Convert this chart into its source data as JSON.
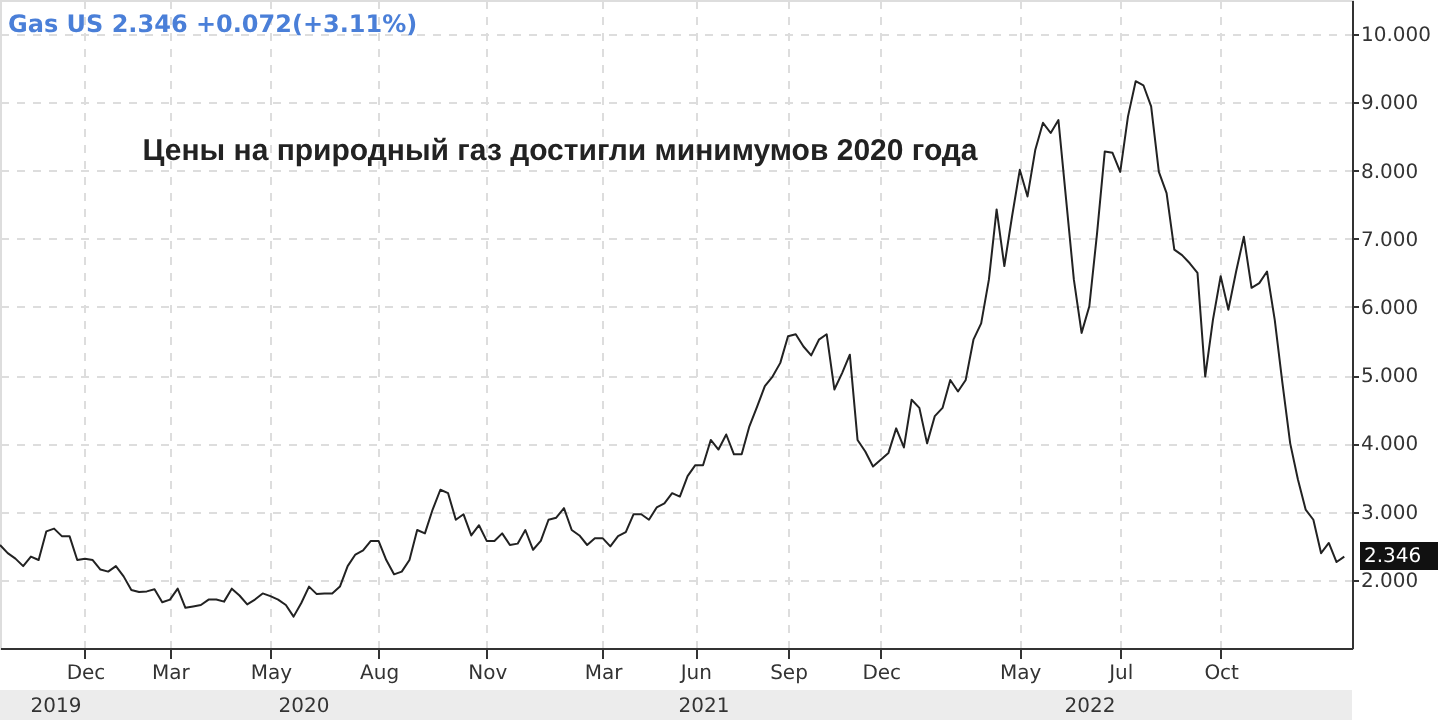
{
  "chart_data": {
    "type": "line",
    "title": "Gas US 2.346 +0.072(+3.11%)",
    "annotations": [
      "Цены на природный газ достигли минимумов 2020 года",
      "2.346",
      "2019",
      "2020",
      "2021",
      "2022"
    ],
    "categories": [
      null,
      null,
      null,
      null,
      null,
      null,
      null,
      null,
      null,
      null,
      null,
      "Dec",
      null,
      null,
      null,
      null,
      null,
      null,
      null,
      null,
      null,
      null,
      "Mar",
      null,
      null,
      null,
      null,
      null,
      null,
      null,
      null,
      null,
      null,
      null,
      null,
      "May",
      null,
      null,
      null,
      null,
      null,
      null,
      null,
      null,
      null,
      null,
      null,
      null,
      null,
      "Aug",
      null,
      null,
      null,
      null,
      null,
      null,
      null,
      null,
      null,
      null,
      null,
      null,
      null,
      "Nov",
      null,
      null,
      null,
      null,
      null,
      null,
      null,
      null,
      null,
      null,
      null,
      null,
      null,
      null,
      "Mar",
      null,
      null,
      null,
      null,
      null,
      null,
      null,
      null,
      null,
      null,
      null,
      "Jun",
      null,
      null,
      null,
      null,
      null,
      null,
      null,
      null,
      null,
      null,
      null,
      "Sep",
      null,
      null,
      null,
      null,
      null,
      null,
      null,
      null,
      null,
      null,
      null,
      "Dec",
      null,
      null,
      null,
      null,
      null,
      null,
      null,
      null,
      null,
      null,
      null,
      null,
      null,
      null,
      null,
      null,
      null,
      "May",
      null,
      null,
      null,
      null,
      null,
      null,
      null,
      null,
      null,
      null,
      null,
      null,
      "Jul",
      null,
      null,
      null,
      null,
      null,
      null,
      null,
      null,
      null,
      null,
      null,
      null,
      "Oct",
      null,
      null,
      null,
      null,
      null,
      null,
      null,
      null,
      null,
      null,
      null,
      null,
      null,
      null,
      null,
      null
    ],
    "values": [
      2.51,
      2.39,
      2.31,
      2.2,
      2.34,
      2.29,
      2.71,
      2.75,
      2.64,
      2.64,
      2.29,
      2.31,
      2.29,
      2.15,
      2.12,
      2.2,
      2.05,
      1.85,
      1.82,
      1.83,
      1.86,
      1.67,
      1.71,
      1.87,
      1.59,
      1.61,
      1.63,
      1.71,
      1.71,
      1.68,
      1.87,
      1.77,
      1.64,
      1.71,
      1.8,
      1.76,
      1.71,
      1.63,
      1.46,
      1.66,
      1.9,
      1.79,
      1.8,
      1.8,
      1.9,
      2.2,
      2.37,
      2.43,
      2.57,
      2.57,
      2.29,
      2.08,
      2.12,
      2.29,
      2.73,
      2.68,
      3.03,
      3.32,
      3.27,
      2.88,
      2.96,
      2.65,
      2.8,
      2.57,
      2.57,
      2.68,
      2.51,
      2.53,
      2.73,
      2.44,
      2.57,
      2.88,
      2.91,
      3.05,
      2.73,
      2.65,
      2.51,
      2.61,
      2.61,
      2.49,
      2.64,
      2.7,
      2.96,
      2.96,
      2.88,
      3.06,
      3.12,
      3.27,
      3.22,
      3.52,
      3.68,
      3.68,
      4.05,
      3.91,
      4.13,
      3.84,
      3.84,
      4.25,
      4.54,
      4.84,
      4.98,
      5.18,
      5.57,
      5.6,
      5.42,
      5.29,
      5.52,
      5.6,
      4.79,
      5.03,
      5.3,
      4.05,
      3.88,
      3.66,
      3.76,
      3.86,
      4.22,
      3.94,
      4.64,
      4.52,
      4.0,
      4.4,
      4.52,
      4.93,
      4.76,
      4.93,
      5.52,
      5.76,
      6.4,
      7.43,
      6.6,
      7.33,
      8.01,
      7.62,
      8.3,
      8.7,
      8.55,
      8.74,
      7.57,
      6.4,
      5.62,
      6.01,
      7.08,
      8.28,
      8.26,
      7.98,
      8.79,
      9.31,
      9.25,
      8.94,
      7.98,
      7.67,
      6.84,
      6.76,
      6.64,
      6.5,
      4.98,
      5.81,
      6.45,
      5.96,
      6.52,
      7.03,
      6.28,
      6.35,
      6.52,
      5.81,
      4.88,
      4.0,
      3.47,
      3.03,
      2.88,
      2.39,
      2.54,
      2.26,
      2.34
    ],
    "color": "#222222",
    "grid": true,
    "ylim": [
      1.0,
      10.5
    ],
    "yticks": [
      {
        "value": 2,
        "label": "2.000"
      },
      {
        "value": 3,
        "label": "3.000"
      },
      {
        "value": 4,
        "label": "4.000"
      },
      {
        "value": 5,
        "label": "5.000"
      },
      {
        "value": 6,
        "label": "6.000"
      },
      {
        "value": 7,
        "label": "7.000"
      },
      {
        "value": 8,
        "label": "8.000"
      },
      {
        "value": 9,
        "label": "9.000"
      },
      {
        "value": 10,
        "label": "10.000"
      }
    ]
  }
}
